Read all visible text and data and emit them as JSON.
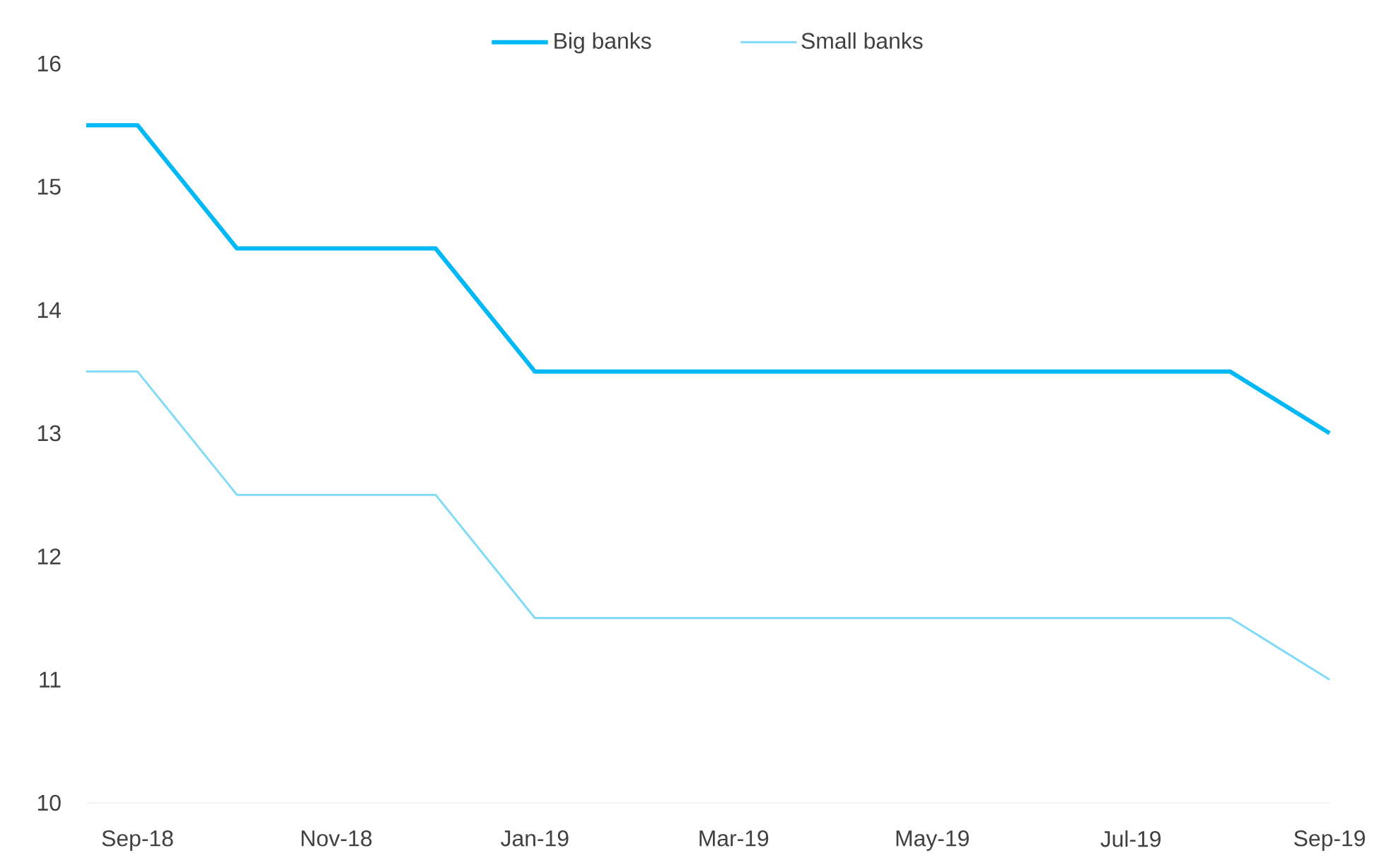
{
  "chart_data": {
    "type": "line",
    "x": [
      "2018-08-16",
      "2018-09",
      "2018-10",
      "2018-12",
      "2019-01",
      "2019-08",
      "2019-09"
    ],
    "series": [
      {
        "name": "Big banks",
        "color": "#00b8f5",
        "values": [
          15.5,
          15.5,
          14.5,
          14.5,
          13.5,
          13.5,
          13.0
        ]
      },
      {
        "name": "Small banks",
        "color": "#80daf8",
        "values": [
          13.5,
          13.5,
          12.5,
          12.5,
          11.5,
          11.5,
          11.0
        ]
      }
    ],
    "xticks": [
      {
        "value": "2018-09",
        "label": "Sep-18"
      },
      {
        "value": "2018-11",
        "label": "Nov-18"
      },
      {
        "value": "2019-01",
        "label": "Jan-19"
      },
      {
        "value": "2019-03",
        "label": "Mar-19"
      },
      {
        "value": "2019-05",
        "label": "May-19"
      },
      {
        "value": "2019-07",
        "label": "Jul-19"
      },
      {
        "value": "2019-09",
        "label": "Sep-19"
      }
    ],
    "xlim": [
      "2018-08-16",
      "2019-09"
    ],
    "ylim": [
      10,
      16
    ],
    "yticks": [
      10,
      11,
      12,
      13,
      14,
      15,
      16
    ],
    "grid": false,
    "legend": "top",
    "line_style": "solid"
  }
}
